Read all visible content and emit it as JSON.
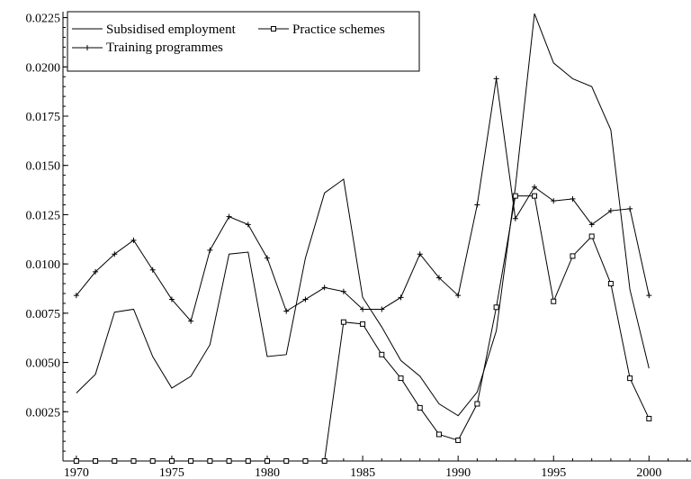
{
  "chart_data": {
    "type": "line",
    "title": "",
    "xlabel": "",
    "ylabel": "",
    "xlim": [
      1969.3,
      2002.2
    ],
    "ylim": [
      0.0,
      0.0228
    ],
    "x": [
      1970,
      1971,
      1972,
      1973,
      1974,
      1975,
      1976,
      1977,
      1978,
      1979,
      1980,
      1981,
      1982,
      1983,
      1984,
      1985,
      1986,
      1987,
      1988,
      1989,
      1990,
      1991,
      1992,
      1993,
      1994,
      1995,
      1996,
      1997,
      1998,
      1999,
      2000
    ],
    "xticks": [
      1970,
      1975,
      1980,
      1985,
      1990,
      1995,
      2000
    ],
    "xtick_labels": [
      "1970",
      "1975",
      "1980",
      "1985",
      "1990",
      "1995",
      "2000"
    ],
    "yticks": [
      0.0025,
      0.005,
      0.0075,
      0.01,
      0.0125,
      0.015,
      0.0175,
      0.02,
      0.0225
    ],
    "ytick_labels": [
      "0.0025",
      "0.0050",
      "0.0075",
      "0.0100",
      "0.0125",
      "0.0150",
      "0.0175",
      "0.0200",
      "0.0225"
    ],
    "legend_position": "top-left",
    "grid": false,
    "series": [
      {
        "name": "Subsidised employment",
        "marker": "none",
        "values": [
          0.00345,
          0.0044,
          0.00755,
          0.0077,
          0.0053,
          0.0037,
          0.0043,
          0.0059,
          0.0105,
          0.0106,
          0.0053,
          0.0054,
          0.0103,
          0.0136,
          0.0143,
          0.0083,
          0.0068,
          0.0051,
          0.0043,
          0.0029,
          0.0023,
          0.0035,
          0.0066,
          0.0139,
          0.0227,
          0.0202,
          0.0194,
          0.019,
          0.0168,
          0.0087,
          0.0047
        ]
      },
      {
        "name": "Practice schemes",
        "marker": "square",
        "values": [
          0,
          0,
          0,
          0,
          0,
          0,
          0,
          0,
          0,
          0,
          0,
          0,
          0,
          0,
          0.00705,
          0.00695,
          0.0054,
          0.0042,
          0.0027,
          0.00135,
          0.00105,
          0.0029,
          0.0078,
          0.01345,
          0.01345,
          0.0081,
          0.0104,
          0.0114,
          0.009,
          0.0042,
          0.00215
        ]
      },
      {
        "name": "Training programmes",
        "marker": "plus",
        "values": [
          0.0084,
          0.0096,
          0.0105,
          0.0112,
          0.0097,
          0.0082,
          0.0071,
          0.0107,
          0.0124,
          0.012,
          0.0103,
          0.0076,
          0.0082,
          0.0088,
          0.0086,
          0.0077,
          0.0077,
          0.0083,
          0.0105,
          0.0093,
          0.0084,
          0.013,
          0.0194,
          0.0123,
          0.0139,
          0.0132,
          0.0133,
          0.012,
          0.0127,
          0.0128,
          0.0084
        ]
      }
    ]
  }
}
